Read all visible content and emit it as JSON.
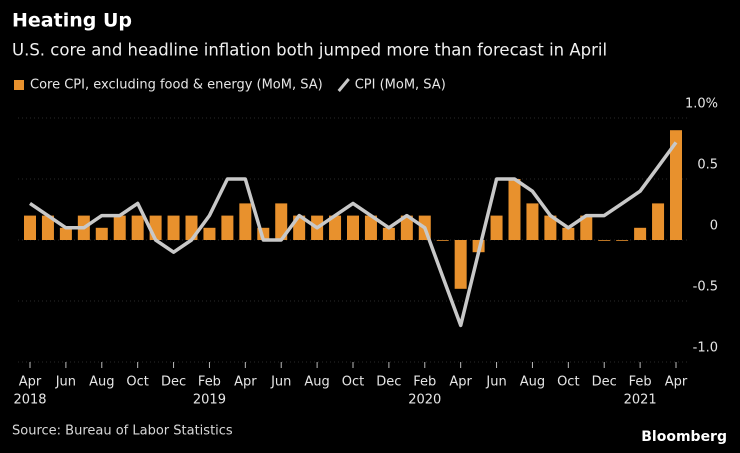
{
  "chart_data": {
    "type": "bar_line",
    "title": "Heating Up",
    "subtitle": "U.S. core and headline inflation both jumped more than forecast in April",
    "source": "Source: Bureau of Labor Statistics",
    "brand": "Bloomberg",
    "legend": "top-left",
    "categories": [
      "Apr",
      null,
      "Jun",
      null,
      "Aug",
      null,
      "Oct",
      null,
      "Dec",
      null,
      "Feb",
      null,
      "Apr",
      null,
      "Jun",
      null,
      "Aug",
      null,
      "Oct",
      null,
      "Dec",
      null,
      "Feb",
      null,
      "Apr",
      null,
      "Jun",
      null,
      "Aug",
      null,
      "Oct",
      null,
      "Dec",
      null,
      "Feb",
      null,
      "Apr"
    ],
    "category_years": [
      "2018",
      null,
      null,
      null,
      null,
      null,
      null,
      null,
      null,
      null,
      "2019",
      null,
      null,
      null,
      null,
      null,
      null,
      null,
      null,
      null,
      null,
      null,
      "2020",
      null,
      null,
      null,
      null,
      null,
      null,
      null,
      null,
      null,
      null,
      null,
      "2021",
      null,
      null
    ],
    "series": [
      {
        "name": "Core CPI, excluding food & energy (MoM, SA)",
        "type": "bar",
        "color": "#e8912d",
        "values": [
          0.2,
          0.2,
          0.1,
          0.2,
          0.1,
          0.2,
          0.2,
          0.2,
          0.2,
          0.2,
          0.1,
          0.2,
          0.3,
          0.1,
          0.3,
          0.2,
          0.2,
          0.2,
          0.2,
          0.2,
          0.1,
          0.2,
          0.2,
          0.0,
          -0.4,
          -0.1,
          0.2,
          0.5,
          0.3,
          0.2,
          0.1,
          0.2,
          0.0,
          0.0,
          0.1,
          0.3,
          0.9
        ]
      },
      {
        "name": "CPI (MoM, SA)",
        "type": "line",
        "color": "#c8c8c8",
        "values": [
          0.3,
          0.2,
          0.1,
          0.1,
          0.2,
          0.2,
          0.3,
          0.0,
          -0.1,
          0.0,
          0.2,
          0.5,
          0.5,
          0.0,
          0.0,
          0.2,
          0.1,
          0.2,
          0.3,
          0.2,
          0.1,
          0.2,
          0.1,
          -0.3,
          -0.7,
          -0.1,
          0.5,
          0.5,
          0.4,
          0.2,
          0.1,
          0.2,
          0.2,
          0.3,
          0.4,
          0.6,
          0.8
        ]
      }
    ],
    "ylim": [
      -1.0,
      1.0
    ],
    "yticks": [
      {
        "value": 1.0,
        "label": "1.0%"
      },
      0.5,
      0,
      -0.5,
      {
        "value": -1.0,
        "label": "-1.0"
      }
    ]
  }
}
